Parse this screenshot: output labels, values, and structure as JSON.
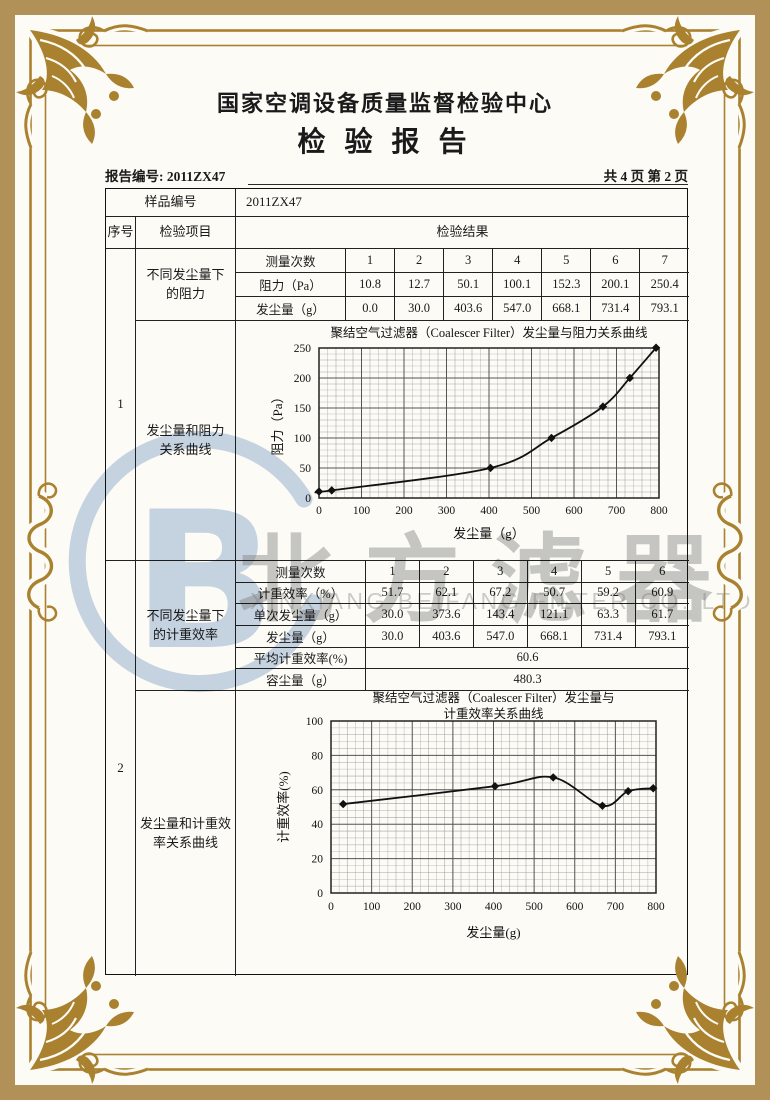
{
  "colors": {
    "band": "#b19157",
    "gold": "#a9812f",
    "paper": "#fcfbf6",
    "watermark_blue": "#c8d6e9",
    "watermark_gray": "#7d7d7d",
    "line_black": "#222222"
  },
  "header": {
    "org": "国家空调设备质量监督检验中心",
    "title": "检  验  报  告",
    "report_no": "报告编号: 2011ZX47",
    "pages": "共 4 页 第 2 页"
  },
  "sample_row": {
    "label": "样品编号",
    "value": "2011ZX47"
  },
  "head_row": {
    "seq": "序号",
    "item": "检验项目",
    "result": "检验结果"
  },
  "sections": [
    {
      "seq": "1",
      "items": [
        "不同发尘量下\n的阻力",
        "发尘量和阻力\n关系曲线"
      ]
    },
    {
      "seq": "2",
      "items": [
        "不同发尘量下\n的计重效率",
        "发尘量和计重效\n率关系曲线"
      ]
    }
  ],
  "table1": {
    "cols": 7,
    "rows": [
      {
        "label": "测量次数",
        "values": [
          "1",
          "2",
          "3",
          "4",
          "5",
          "6",
          "7"
        ]
      },
      {
        "label": "阻力（Pa）",
        "values": [
          "10.8",
          "12.7",
          "50.1",
          "100.1",
          "152.3",
          "200.1",
          "250.4"
        ]
      },
      {
        "label": "发尘量（g）",
        "values": [
          "0.0",
          "30.0",
          "403.6",
          "547.0",
          "668.1",
          "731.4",
          "793.1"
        ]
      }
    ]
  },
  "table2": {
    "cols": 6,
    "rows": [
      {
        "label": "测量次数",
        "values": [
          "1",
          "2",
          "3",
          "4",
          "5",
          "6"
        ]
      },
      {
        "label": "计重效率（%）",
        "values": [
          "51.7",
          "62.1",
          "67.2",
          "50.7",
          "59.2",
          "60.9"
        ]
      },
      {
        "label": "单次发尘量（g）",
        "values": [
          "30.0",
          "373.6",
          "143.4",
          "121.1",
          "63.3",
          "61.7"
        ]
      },
      {
        "label": "发尘量（g）",
        "values": [
          "30.0",
          "403.6",
          "547.0",
          "668.1",
          "731.4",
          "793.1"
        ]
      },
      {
        "label": "平均计重效率(%)",
        "merged": "60.6"
      },
      {
        "label": "容尘量（g）",
        "merged": "480.3"
      }
    ]
  },
  "chart_data": [
    {
      "type": "line",
      "title": "聚结空气过滤器（Coalescer Filter）发尘量与阻力关系曲线",
      "xlabel": "发尘量（g）",
      "ylabel": "阻力（Pa）",
      "xlim": [
        0,
        800
      ],
      "ylim": [
        0,
        250
      ],
      "xticks": [
        0,
        100,
        200,
        300,
        400,
        500,
        600,
        700,
        800
      ],
      "yticks": [
        0,
        50,
        100,
        150,
        200,
        250
      ],
      "grid": true,
      "legend": "none",
      "x": [
        0,
        30,
        403.6,
        547.0,
        668.1,
        731.4,
        793.1
      ],
      "y": [
        10.8,
        12.7,
        50.1,
        100.1,
        152.3,
        200.1,
        250.4
      ]
    },
    {
      "type": "line",
      "title": "聚结空气过滤器（Coalescer Filter）发尘量与",
      "title2": "计重效率关系曲线",
      "xlabel": "发尘量(g)",
      "ylabel": "计重效率(%)",
      "xlim": [
        0,
        800
      ],
      "ylim": [
        0,
        100
      ],
      "xticks": [
        0,
        100,
        200,
        300,
        400,
        500,
        600,
        700,
        800
      ],
      "yticks": [
        0,
        20,
        40,
        60,
        80,
        100
      ],
      "grid": true,
      "legend": "none",
      "x": [
        30,
        403.6,
        547.0,
        668.1,
        731.4,
        793.1
      ],
      "y": [
        51.7,
        62.1,
        67.2,
        50.7,
        59.2,
        60.9
      ]
    }
  ],
  "watermark": {
    "logo_letter": "B",
    "company_cn": "北方滤器",
    "company_en": "XINXIANG BEIFANG FILTER CO. LTD"
  }
}
